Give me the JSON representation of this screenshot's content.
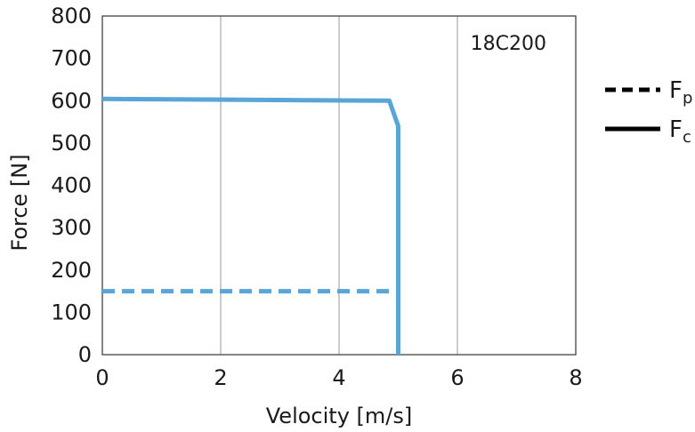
{
  "chart_data": {
    "type": "line",
    "title": "",
    "annotation": "18C200",
    "xlabel": "Velocity [m/s]",
    "ylabel": "Force [N]",
    "xlim": [
      0,
      8
    ],
    "ylim": [
      0,
      800
    ],
    "x_ticks": [
      "0",
      "2",
      "4",
      "6",
      "8"
    ],
    "y_ticks": [
      "0",
      "100",
      "200",
      "300",
      "400",
      "500",
      "600",
      "700",
      "800"
    ],
    "grid": "vertical",
    "legend_position": "right",
    "colors": {
      "series": "#5aa5d8",
      "legend": "#000000",
      "grid": "#9a9a9a",
      "axis": "#333333"
    },
    "series": [
      {
        "name": "Fc",
        "legend_main": "F",
        "legend_sub": "c",
        "style": "solid",
        "points": [
          [
            0,
            604
          ],
          [
            4.85,
            600
          ],
          [
            5.0,
            540
          ],
          [
            5.0,
            0
          ]
        ]
      },
      {
        "name": "Fp",
        "legend_main": "F",
        "legend_sub": "p",
        "style": "dashed",
        "points": [
          [
            0,
            150
          ],
          [
            5.0,
            150
          ]
        ]
      }
    ]
  }
}
